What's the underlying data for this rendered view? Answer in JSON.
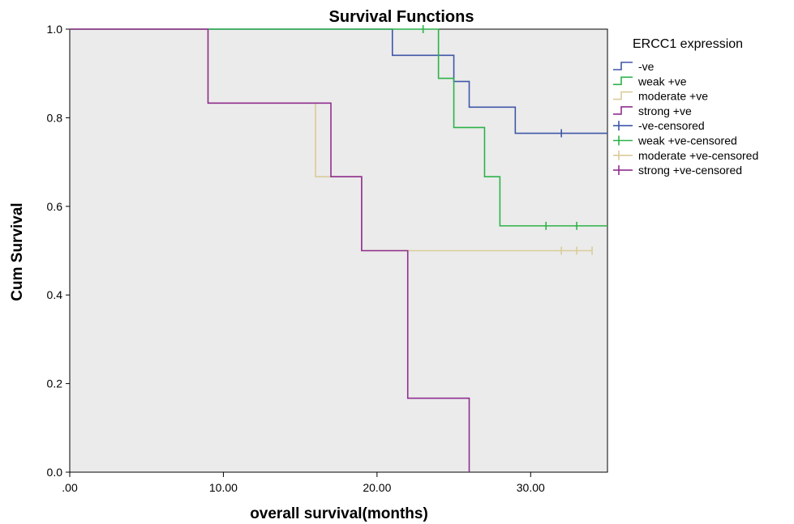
{
  "chart_data": {
    "type": "line",
    "step": true,
    "title": "Survival Functions",
    "xlabel": "overall survival(months)",
    "ylabel": "Cum Survival",
    "xlim": [
      0,
      35
    ],
    "ylim": [
      0,
      1.0
    ],
    "xticks": [
      0,
      10,
      20,
      30
    ],
    "xtick_labels": [
      ".00",
      "10.00",
      "20.00",
      "30.00"
    ],
    "yticks": [
      0,
      0.2,
      0.4,
      0.6,
      0.8,
      1.0
    ],
    "ytick_labels": [
      "0.0",
      "0.2",
      "0.4",
      "0.6",
      "0.8",
      "1.0"
    ],
    "grid": false,
    "plot_background": "#ebebeb",
    "legend_title": "ERCC1 expression",
    "legend_position": "right",
    "legend": [
      {
        "label": "-ve",
        "color": "#3f57a8",
        "kind": "line"
      },
      {
        "label": "weak +ve",
        "color": "#2db24a",
        "kind": "line"
      },
      {
        "label": "moderate +ve",
        "color": "#d9cc9a",
        "kind": "line"
      },
      {
        "label": "strong +ve",
        "color": "#8f2f8f",
        "kind": "line"
      },
      {
        "label": "-ve-censored",
        "color": "#3f57a8",
        "kind": "censor"
      },
      {
        "label": "weak +ve-censored",
        "color": "#2db24a",
        "kind": "censor"
      },
      {
        "label": "moderate +ve-censored",
        "color": "#d9cc9a",
        "kind": "censor"
      },
      {
        "label": "strong +ve-censored",
        "color": "#8f2f8f",
        "kind": "censor"
      }
    ],
    "series": [
      {
        "name": "-ve",
        "color": "#3f57a8",
        "steps": [
          [
            0,
            1.0
          ],
          [
            21,
            0.941
          ],
          [
            25,
            0.882
          ],
          [
            26,
            0.824
          ],
          [
            29,
            0.765
          ]
        ],
        "end_x": 35,
        "censored": [
          [
            32,
            0.765
          ]
        ]
      },
      {
        "name": "weak +ve",
        "color": "#2db24a",
        "steps": [
          [
            0,
            1.0
          ],
          [
            24,
            0.889
          ],
          [
            25,
            0.778
          ],
          [
            27,
            0.667
          ],
          [
            28,
            0.556
          ]
        ],
        "end_x": 35,
        "censored": [
          [
            23,
            1.0
          ],
          [
            31,
            0.556
          ],
          [
            33,
            0.556
          ]
        ]
      },
      {
        "name": "moderate +ve",
        "color": "#d9cc9a",
        "steps": [
          [
            0,
            1.0
          ],
          [
            9,
            0.833
          ],
          [
            16,
            0.667
          ],
          [
            19,
            0.5
          ]
        ],
        "end_x": 34,
        "censored": [
          [
            32,
            0.5
          ],
          [
            33,
            0.5
          ],
          [
            34,
            0.5
          ]
        ]
      },
      {
        "name": "strong +ve",
        "color": "#8f2f8f",
        "steps": [
          [
            0,
            1.0
          ],
          [
            9,
            0.833
          ],
          [
            17,
            0.667
          ],
          [
            19,
            0.5
          ],
          [
            22,
            0.167
          ],
          [
            26,
            0.0
          ]
        ],
        "end_x": 26,
        "censored": []
      }
    ]
  }
}
